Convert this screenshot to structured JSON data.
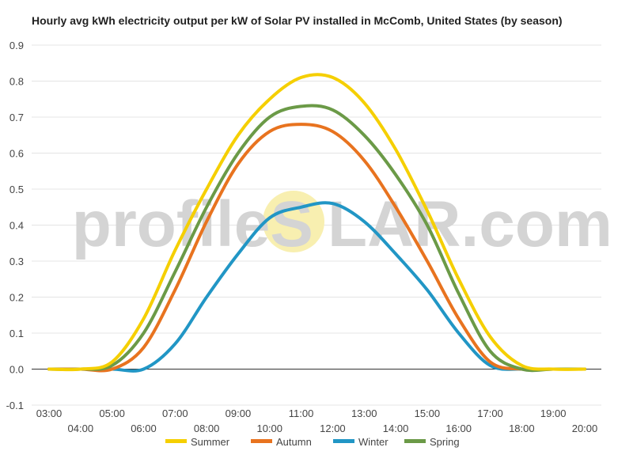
{
  "chart_data": {
    "type": "line",
    "title": "Hourly avg kWh electricity output per kW of Solar PV installed in McComb, United States (by season)",
    "xlabel": "",
    "ylabel": "",
    "x_tick_labels": [
      "03:00",
      "04:00",
      "05:00",
      "06:00",
      "07:00",
      "08:00",
      "09:00",
      "10:00",
      "11:00",
      "12:00",
      "13:00",
      "14:00",
      "15:00",
      "16:00",
      "17:00",
      "18:00",
      "19:00",
      "20:00"
    ],
    "x": [
      3,
      4,
      5,
      6,
      7,
      8,
      9,
      10,
      11,
      12,
      13,
      14,
      15,
      16,
      17,
      18,
      19,
      20
    ],
    "ylim": [
      -0.1,
      0.9
    ],
    "y_ticks": [
      "-0.1",
      "0.0",
      "0.1",
      "0.2",
      "0.3",
      "0.4",
      "0.5",
      "0.6",
      "0.7",
      "0.8",
      "0.9"
    ],
    "grid": true,
    "legend_position": "bottom",
    "series": [
      {
        "name": "Summer",
        "color": "#f5cf00",
        "values": [
          0,
          0,
          0.02,
          0.14,
          0.33,
          0.5,
          0.65,
          0.75,
          0.81,
          0.81,
          0.74,
          0.61,
          0.44,
          0.25,
          0.09,
          0.01,
          0,
          0
        ]
      },
      {
        "name": "Autumn",
        "color": "#e8731f",
        "values": [
          0,
          0,
          0,
          0.06,
          0.22,
          0.41,
          0.57,
          0.66,
          0.68,
          0.66,
          0.58,
          0.45,
          0.3,
          0.14,
          0.02,
          0,
          0,
          0
        ]
      },
      {
        "name": "Winter",
        "color": "#2196c5",
        "values": [
          0,
          0,
          0,
          0,
          0.07,
          0.2,
          0.32,
          0.42,
          0.45,
          0.46,
          0.41,
          0.32,
          0.22,
          0.1,
          0.01,
          0,
          0,
          0
        ]
      },
      {
        "name": "Spring",
        "color": "#6b9a47",
        "values": [
          0,
          0,
          0.01,
          0.1,
          0.27,
          0.45,
          0.6,
          0.7,
          0.73,
          0.72,
          0.65,
          0.54,
          0.4,
          0.21,
          0.05,
          0,
          0,
          0
        ]
      }
    ]
  },
  "watermark": {
    "left": "profileS",
    "right": "LAR.com",
    "sun_color": "#f8efb0"
  }
}
